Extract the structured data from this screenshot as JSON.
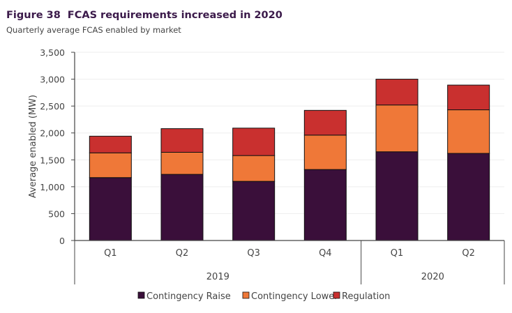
{
  "figure": {
    "number": "Figure 38",
    "title": "FCAS requirements increased in 2020",
    "subtitle": "Quarterly average FCAS enabled by market"
  },
  "chart_data": {
    "type": "bar",
    "stacked": true,
    "title": "FCAS requirements increased in 2020",
    "subtitle": "Quarterly average FCAS enabled by market",
    "xlabel": "",
    "ylabel": "Average enabled (MW)",
    "ylim": [
      0,
      3500
    ],
    "yticks": [
      0,
      500,
      1000,
      1500,
      2000,
      2500,
      3000,
      3500
    ],
    "ytick_labels": [
      "0",
      "500",
      "1,000",
      "1,500",
      "2,000",
      "2,500",
      "3,000",
      "3,500"
    ],
    "categories": [
      "Q1",
      "Q2",
      "Q3",
      "Q4",
      "Q1",
      "Q2"
    ],
    "groups": [
      {
        "label": "2019",
        "count": 4
      },
      {
        "label": "2020",
        "count": 2
      }
    ],
    "grid": true,
    "legend_position": "bottom",
    "series": [
      {
        "name": "Contingency Raise",
        "color": "#3a0f3a",
        "values": [
          1170,
          1230,
          1100,
          1320,
          1650,
          1620
        ]
      },
      {
        "name": "Contingency Lower",
        "color": "#ef7838",
        "values": [
          460,
          410,
          480,
          640,
          870,
          810
        ]
      },
      {
        "name": "Regulation",
        "color": "#c9302f",
        "values": [
          310,
          440,
          510,
          460,
          480,
          460
        ]
      }
    ]
  }
}
